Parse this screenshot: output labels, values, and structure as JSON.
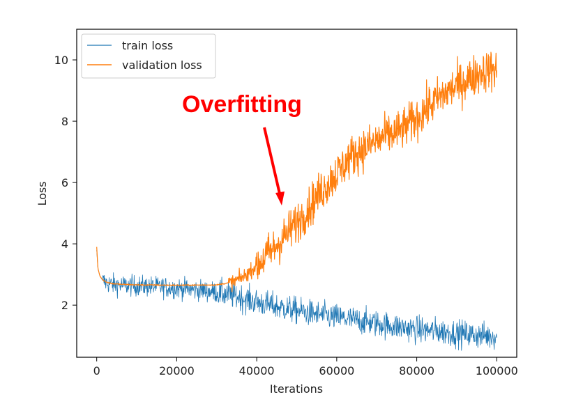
{
  "chart_data": {
    "type": "line",
    "title": "",
    "xlabel": "Iterations",
    "ylabel": "Loss",
    "xlim": [
      -5000,
      105000
    ],
    "ylim": [
      0.3,
      11.0
    ],
    "x_ticks": [
      0,
      20000,
      40000,
      60000,
      80000,
      100000
    ],
    "x_tick_labels": [
      "0",
      "20000",
      "40000",
      "60000",
      "80000",
      "100000"
    ],
    "y_ticks": [
      2,
      4,
      6,
      8,
      10
    ],
    "y_tick_labels": [
      "2",
      "4",
      "6",
      "8",
      "10"
    ],
    "grid": false,
    "legend_position": "upper-left",
    "series": [
      {
        "name": "train loss",
        "color": "#1f77b4",
        "x": [
          0,
          300,
          800,
          1500,
          2500,
          4000,
          6000,
          10000,
          15000,
          20000,
          25000,
          30000,
          35000,
          40000,
          45000,
          50000,
          55000,
          60000,
          65000,
          70000,
          75000,
          80000,
          85000,
          90000,
          95000,
          100000
        ],
        "y": [
          3.8,
          3.2,
          2.95,
          2.8,
          2.72,
          2.68,
          2.65,
          2.63,
          2.6,
          2.56,
          2.5,
          2.42,
          2.28,
          2.1,
          1.95,
          1.82,
          1.7,
          1.6,
          1.5,
          1.4,
          1.3,
          1.2,
          1.15,
          1.08,
          1.02,
          0.98
        ]
      },
      {
        "name": "validation loss",
        "color": "#ff7f0e",
        "x": [
          0,
          300,
          800,
          1500,
          2500,
          4000,
          6000,
          10000,
          20000,
          30000,
          34000,
          37000,
          40000,
          44000,
          48000,
          52000,
          56000,
          60000,
          64000,
          68000,
          72000,
          76000,
          80000,
          84000,
          88000,
          92000,
          96000,
          100000
        ],
        "y": [
          3.9,
          3.2,
          2.95,
          2.82,
          2.75,
          2.7,
          2.68,
          2.66,
          2.65,
          2.66,
          2.75,
          2.95,
          3.3,
          3.8,
          4.4,
          5.0,
          5.7,
          6.3,
          6.9,
          7.2,
          7.5,
          7.7,
          8.1,
          8.6,
          9.0,
          9.3,
          9.6,
          9.7
        ]
      }
    ],
    "annotations": [
      {
        "text": "Overfitting",
        "color": "#ff0000",
        "arrow_to": [
          46000,
          5.2
        ]
      }
    ]
  }
}
